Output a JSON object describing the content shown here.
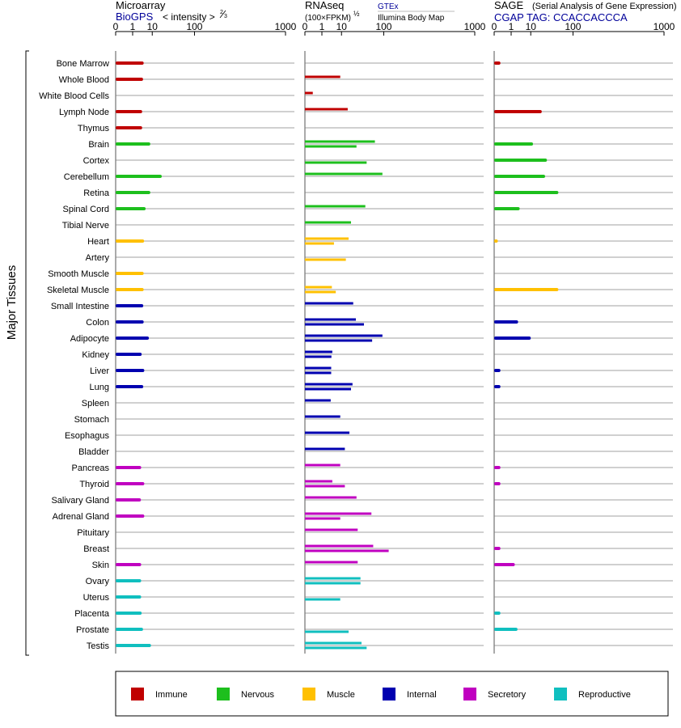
{
  "colors": {
    "Immune": "#c00000",
    "Nervous": "#1dbf1d",
    "Muscle": "#ffc000",
    "Internal": "#0000b0",
    "Secretory": "#c000c0",
    "Reproductive": "#10bfbf",
    "axis": "#000000",
    "rowline": "#808080",
    "link": "#000099"
  },
  "header": {
    "microarray": {
      "title": "Microarray",
      "source": "BioGPS",
      "scale": "< intensity >",
      "exponent_num": "2",
      "exponent_den": "3"
    },
    "rnaseq": {
      "title": "RNAseq",
      "scale": "(100×FPKM)",
      "exponent": "½",
      "source_1": "GTEx",
      "source_2": "Illumina Body Map"
    },
    "sage": {
      "title": "SAGE",
      "subtitle": "(Serial Analysis of Gene Expression)",
      "tag": "CGAP TAG: CCACCACCCA"
    }
  },
  "y_group_label": "Major Tissues",
  "legend": [
    {
      "name": "Immune",
      "color": "#c00000"
    },
    {
      "name": "Nervous",
      "color": "#1dbf1d"
    },
    {
      "name": "Muscle",
      "color": "#ffc000"
    },
    {
      "name": "Internal",
      "color": "#0000b0"
    },
    {
      "name": "Secretory",
      "color": "#c000c0"
    },
    {
      "name": "Reproductive",
      "color": "#10bfbf"
    }
  ],
  "chart_data": {
    "type": "bar",
    "orientation": "horizontal",
    "x_scale": "power",
    "axis_ticks": [
      "0",
      "1",
      "10",
      "100",
      "1000"
    ],
    "xlim": [
      0,
      1000
    ],
    "categories": [
      "Bone Marrow",
      "Whole Blood",
      "White Blood Cells",
      "Lymph Node",
      "Thymus",
      "Brain",
      "Cortex",
      "Cerebellum",
      "Retina",
      "Spinal Cord",
      "Tibial Nerve",
      "Heart",
      "Artery",
      "Smooth Muscle",
      "Skeletal Muscle",
      "Small Intestine",
      "Colon",
      "Adipocyte",
      "Kidney",
      "Liver",
      "Lung",
      "Spleen",
      "Stomach",
      "Esophagus",
      "Bladder",
      "Pancreas",
      "Thyroid",
      "Salivary Gland",
      "Adrenal Gland",
      "Pituitary",
      "Breast",
      "Skin",
      "Ovary",
      "Uterus",
      "Placenta",
      "Prostate",
      "Testis"
    ],
    "category_system": [
      "Immune",
      "Immune",
      "Immune",
      "Immune",
      "Immune",
      "Nervous",
      "Nervous",
      "Nervous",
      "Nervous",
      "Nervous",
      "Nervous",
      "Muscle",
      "Muscle",
      "Muscle",
      "Muscle",
      "Internal",
      "Internal",
      "Internal",
      "Internal",
      "Internal",
      "Internal",
      "Internal",
      "Internal",
      "Internal",
      "Internal",
      "Secretory",
      "Secretory",
      "Secretory",
      "Secretory",
      "Secretory",
      "Secretory",
      "Secretory",
      "Reproductive",
      "Reproductive",
      "Reproductive",
      "Reproductive",
      "Reproductive"
    ],
    "panels": [
      {
        "name": "Microarray",
        "values": [
          4.5,
          4.2,
          null,
          3.8,
          3.8,
          8.5,
          null,
          20,
          8.5,
          5.5,
          null,
          4.7,
          null,
          4.5,
          4.5,
          4.3,
          4.5,
          7.5,
          3.6,
          4.8,
          4.3,
          null,
          null,
          null,
          null,
          3.4,
          4.8,
          3.3,
          4.8,
          null,
          null,
          3.4,
          3.4,
          3.4,
          3.6,
          4.2,
          9
        ]
      },
      {
        "name": "RNAseq GTEx",
        "values": [
          null,
          9,
          0.1,
          16,
          null,
          70,
          null,
          95,
          null,
          45,
          20,
          17,
          null,
          null,
          4,
          23,
          27,
          95,
          4.2,
          3.7,
          22,
          3.5,
          9,
          18,
          13,
          9,
          4.2,
          28,
          60,
          30,
          65,
          30,
          35,
          null,
          null,
          null,
          37
        ]
      },
      {
        "name": "RNAseq Illumina Body Map",
        "values": [
          null,
          null,
          null,
          null,
          null,
          28,
          48,
          null,
          null,
          null,
          null,
          5,
          14,
          null,
          6,
          null,
          42,
          62,
          3.8,
          3.7,
          20,
          null,
          null,
          null,
          null,
          null,
          13,
          null,
          9,
          null,
          120,
          null,
          35,
          9,
          null,
          17,
          48
        ]
      },
      {
        "name": "SAGE",
        "values": [
          0.05,
          null,
          null,
          22,
          null,
          12,
          30,
          27,
          54,
          3.4,
          null,
          0.01,
          null,
          null,
          54,
          null,
          2.8,
          10,
          null,
          0.05,
          0.05,
          null,
          null,
          null,
          null,
          0.05,
          0.05,
          null,
          null,
          null,
          0.05,
          1.8,
          null,
          null,
          0.05,
          2.6,
          null
        ]
      }
    ]
  }
}
